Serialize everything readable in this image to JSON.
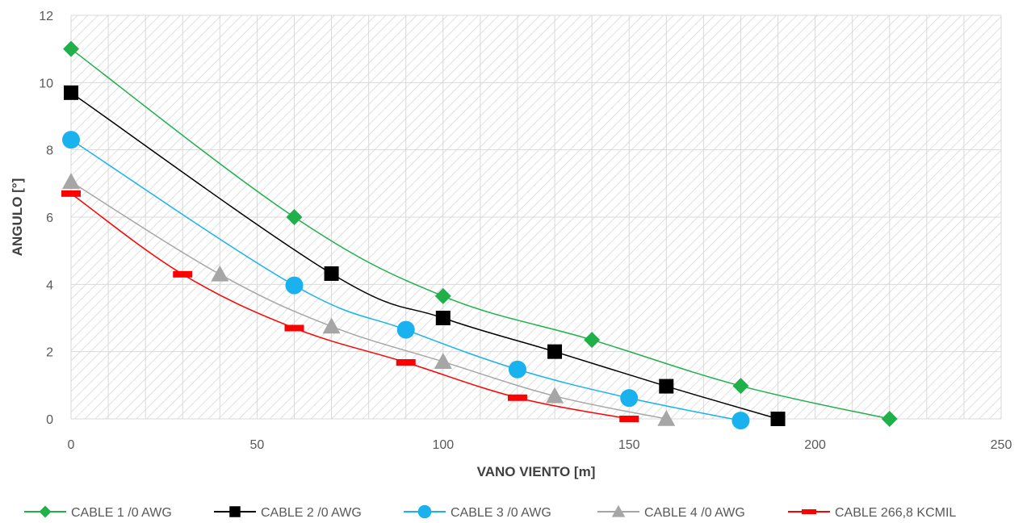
{
  "chart_data": {
    "type": "line",
    "title": "",
    "xlabel": "VANO VIENTO [m]",
    "ylabel": "ANGULO [°]",
    "xlim": [
      0,
      250
    ],
    "ylim": [
      0,
      12
    ],
    "x_ticks": [
      "0",
      "50",
      "100",
      "150",
      "200",
      "250"
    ],
    "y_ticks": [
      "0",
      "2",
      "4",
      "6",
      "8",
      "10",
      "12"
    ],
    "grid": true,
    "legend_position": "bottom",
    "series": [
      {
        "name": "CABLE 1 /0 AWG",
        "color": "#1fb04a",
        "marker": "diamond",
        "x": [
          0,
          60,
          100,
          140,
          180,
          220
        ],
        "y": [
          11.0,
          6.0,
          3.65,
          2.35,
          0.98,
          0.0
        ]
      },
      {
        "name": "CABLE 2 /0 AWG",
        "color": "#000000",
        "marker": "square",
        "x": [
          0,
          70,
          100,
          130,
          160,
          190
        ],
        "y": [
          9.7,
          4.32,
          3.0,
          2.0,
          0.97,
          0.0
        ]
      },
      {
        "name": "CABLE 3 /0 AWG",
        "color": "#1ab2ee",
        "marker": "circle",
        "x": [
          0,
          60,
          90,
          120,
          150,
          180
        ],
        "y": [
          8.3,
          3.97,
          2.65,
          1.47,
          0.62,
          -0.05
        ]
      },
      {
        "name": "CABLE 4 /0 AWG",
        "color": "#a6a6a6",
        "marker": "triangle",
        "x": [
          0,
          40,
          70,
          100,
          130,
          160
        ],
        "y": [
          7.05,
          4.3,
          2.75,
          1.7,
          0.68,
          0.0
        ]
      },
      {
        "name": "CABLE 266,8 KCMIL",
        "color": "#ff0000",
        "marker": "dash",
        "x": [
          0,
          30,
          60,
          90,
          120,
          150
        ],
        "y": [
          6.7,
          4.3,
          2.7,
          1.68,
          0.63,
          0.0
        ]
      }
    ]
  }
}
